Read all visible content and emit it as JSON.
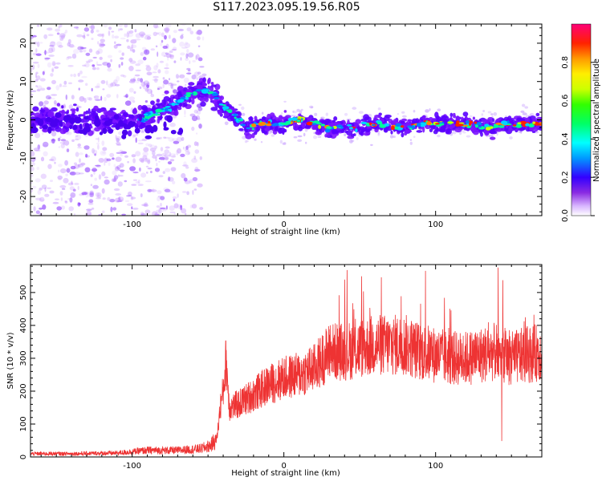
{
  "title": "S117.2023.095.19.56.R05",
  "chart_data": [
    {
      "type": "heatmap",
      "xlabel": "Height of straight line (km)",
      "ylabel": "Frequency (Hz)",
      "xlim": [
        -167,
        170
      ],
      "ylim": [
        -25,
        25
      ],
      "xticks": [
        -100,
        0,
        100
      ],
      "yticks": [
        -20,
        -10,
        0,
        10,
        20
      ],
      "colorbar": {
        "label": "Normalized spectral amplitude",
        "range": [
          0,
          1
        ],
        "ticks": [
          0.0,
          0.2,
          0.4,
          0.6,
          0.8
        ]
      },
      "ridge": [
        [
          -167,
          0
        ],
        [
          -150,
          0
        ],
        [
          -130,
          0
        ],
        [
          -110,
          0
        ],
        [
          -95,
          0
        ],
        [
          -85,
          2
        ],
        [
          -75,
          3
        ],
        [
          -65,
          6
        ],
        [
          -55,
          8
        ],
        [
          -47,
          7
        ],
        [
          -42,
          4
        ],
        [
          -35,
          2
        ],
        [
          -25,
          -2
        ],
        [
          -15,
          -1
        ],
        [
          0,
          -1
        ],
        [
          10,
          0
        ],
        [
          20,
          -1
        ],
        [
          30,
          -2
        ],
        [
          45,
          -2
        ],
        [
          60,
          -1
        ],
        [
          75,
          -2
        ],
        [
          90,
          -1
        ],
        [
          105,
          -1
        ],
        [
          120,
          -1
        ],
        [
          135,
          -2
        ],
        [
          150,
          -1
        ],
        [
          170,
          -1
        ]
      ],
      "grid": false
    },
    {
      "type": "line",
      "xlabel": "Height of straight line (km)",
      "ylabel": "SNR (10 * v/v)",
      "xlim": [
        -167,
        170
      ],
      "ylim": [
        0,
        585
      ],
      "xticks": [
        -100,
        0,
        100
      ],
      "yticks": [
        0,
        100,
        200,
        300,
        400,
        500
      ],
      "color": "#ee3333",
      "envelope": [
        [
          -167,
          10
        ],
        [
          -140,
          10
        ],
        [
          -110,
          12
        ],
        [
          -90,
          20
        ],
        [
          -70,
          20
        ],
        [
          -55,
          25
        ],
        [
          -48,
          35
        ],
        [
          -44,
          60
        ],
        [
          -42,
          150
        ],
        [
          -40,
          200
        ],
        [
          -38,
          300
        ],
        [
          -36,
          150
        ],
        [
          -30,
          160
        ],
        [
          -20,
          190
        ],
        [
          -10,
          220
        ],
        [
          0,
          240
        ],
        [
          10,
          250
        ],
        [
          20,
          270
        ],
        [
          30,
          320
        ],
        [
          40,
          320
        ],
        [
          50,
          330
        ],
        [
          60,
          340
        ],
        [
          70,
          340
        ],
        [
          80,
          340
        ],
        [
          90,
          320
        ],
        [
          100,
          310
        ],
        [
          110,
          300
        ],
        [
          120,
          300
        ],
        [
          130,
          310
        ],
        [
          140,
          320
        ],
        [
          150,
          300
        ],
        [
          160,
          310
        ],
        [
          170,
          320
        ]
      ],
      "grid": false
    }
  ]
}
